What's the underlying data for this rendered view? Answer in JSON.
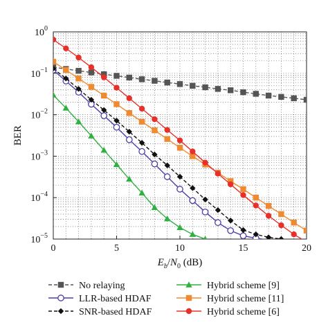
{
  "chart_data": {
    "type": "line",
    "title": "",
    "xlabel": "E_b/N_0 (dB)",
    "ylabel": "BER",
    "xlim": [
      0,
      20
    ],
    "ylim": [
      1e-05,
      1
    ],
    "yscale": "log",
    "grid": "dotted",
    "legend_position": "bottom",
    "x_ticks": [
      "0",
      "5",
      "10",
      "15",
      "20"
    ],
    "y_ticks": [
      {
        "base": "10",
        "exp": "0"
      },
      {
        "base": "10",
        "exp": "−1"
      },
      {
        "base": "10",
        "exp": "−2"
      },
      {
        "base": "10",
        "exp": "−3"
      },
      {
        "base": "10",
        "exp": "−4"
      },
      {
        "base": "10",
        "exp": "−5"
      }
    ],
    "series": [
      {
        "name": "No relaying",
        "color": "#555555",
        "marker": "square",
        "line": "dashed",
        "x": [
          0,
          1,
          2,
          3,
          4,
          5,
          6,
          7,
          8,
          9,
          10,
          11,
          12,
          13,
          14,
          15,
          16,
          17,
          18,
          19,
          20
        ],
        "y": [
          0.14,
          0.127,
          0.115,
          0.105,
          0.095,
          0.087,
          0.079,
          0.072,
          0.066,
          0.06,
          0.055,
          0.05,
          0.046,
          0.042,
          0.039,
          0.035,
          0.032,
          0.029,
          0.027,
          0.025,
          0.023
        ]
      },
      {
        "name": "LLR-based HDAF",
        "color": "#4a3fa8",
        "marker": "circle-open",
        "line": "solid",
        "x": [
          0,
          1,
          2,
          3,
          4,
          5,
          6,
          7,
          8,
          9,
          10,
          11,
          12,
          13,
          14,
          15,
          16,
          17
        ],
        "y": [
          0.12,
          0.065,
          0.035,
          0.018,
          0.0095,
          0.005,
          0.0025,
          0.0013,
          0.00065,
          0.00032,
          0.00016,
          8.5e-05,
          4.5e-05,
          2.5e-05,
          1.6e-05,
          1.2e-05,
          1.05e-05,
          9.5e-06
        ]
      },
      {
        "name": "SNR-based HDAF",
        "color": "#111111",
        "marker": "diamond",
        "line": "dashed",
        "x": [
          0,
          1,
          2,
          3,
          4,
          5,
          6,
          7,
          8,
          9,
          10,
          11,
          12,
          13,
          14,
          15,
          16,
          17,
          18
        ],
        "y": [
          0.13,
          0.075,
          0.042,
          0.023,
          0.013,
          0.0072,
          0.0039,
          0.0021,
          0.0011,
          0.0006,
          0.00032,
          0.00017,
          9e-05,
          5e-05,
          2.8e-05,
          1.65e-05,
          1.3e-05,
          1.1e-05,
          1e-05
        ]
      },
      {
        "name": "Hybrid scheme [9]",
        "color": "#2fb040",
        "marker": "triangle",
        "line": "solid",
        "x": [
          0,
          1,
          2,
          3,
          4,
          5,
          6,
          7,
          8,
          9,
          10,
          11,
          12
        ],
        "y": [
          0.03,
          0.0145,
          0.0068,
          0.0031,
          0.0014,
          0.00063,
          0.00028,
          0.00013,
          5.8e-05,
          3.1e-05,
          1.9e-05,
          1.3e-05,
          1e-05
        ]
      },
      {
        "name": "Hybrid scheme [11]",
        "color": "#f08a30",
        "marker": "square",
        "line": "solid",
        "x": [
          0,
          1,
          2,
          3,
          4,
          5,
          6,
          7,
          8,
          9,
          10,
          11,
          12,
          13,
          14,
          15,
          16,
          17,
          18,
          19,
          20
        ],
        "y": [
          0.19,
          0.12,
          0.075,
          0.047,
          0.029,
          0.018,
          0.011,
          0.0068,
          0.0042,
          0.0026,
          0.0016,
          0.001,
          0.00063,
          0.0004,
          0.00025,
          0.00016,
          0.0001,
          6.3e-05,
          4e-05,
          2.5e-05,
          1.6e-05
        ]
      },
      {
        "name": "Hybrid scheme [6]",
        "color": "#e8302a",
        "marker": "circle",
        "line": "solid",
        "x": [
          0,
          1,
          2,
          3,
          4,
          5,
          6,
          7,
          8,
          9,
          10,
          11,
          12,
          13,
          14,
          15,
          16,
          17,
          18,
          19,
          20
        ],
        "y": [
          0.65,
          0.4,
          0.24,
          0.14,
          0.08,
          0.045,
          0.025,
          0.014,
          0.0078,
          0.0043,
          0.0024,
          0.0013,
          0.0007,
          0.00038,
          0.00021,
          0.000115,
          6.45e-05,
          3.65e-05,
          2.15e-05,
          1.3e-05,
          8.5e-06
        ]
      }
    ]
  }
}
